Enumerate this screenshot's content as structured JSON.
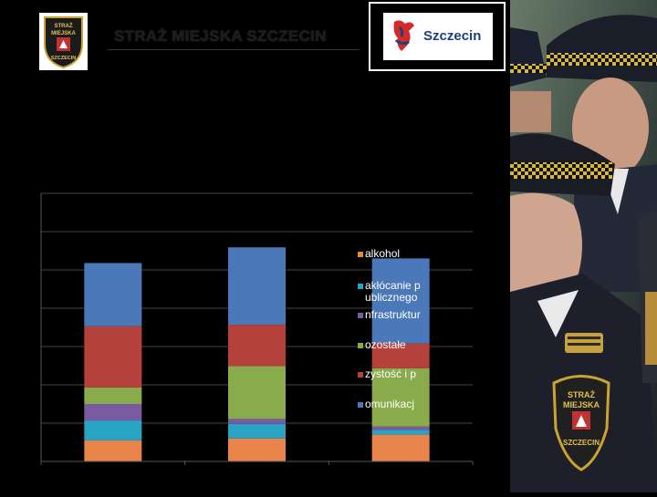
{
  "header": {
    "title": "STRAŻ MIEJSKA SZCZECIN",
    "logo_text": "Szczecin",
    "badge_lines": [
      "STRAŻ",
      "MIEJSKA",
      "SZCZECIN"
    ]
  },
  "photo": {
    "badge_lines": [
      "STRAŻ",
      "MIEJSKA",
      "SZCZECIN"
    ]
  },
  "colors": {
    "background": "#000000",
    "alkohol": "#e8834a",
    "zaklocanie": "#2aa4c4",
    "infrastruktura": "#7a5aa0",
    "pozostale": "#8aab4c",
    "czystosc": "#b5413c",
    "komunikacja": "#4a78b8"
  },
  "chart_data": {
    "type": "bar",
    "stacked": true,
    "categories": [
      "",
      "",
      ""
    ],
    "ylim": [
      0,
      7000
    ],
    "grid": true,
    "legend_position": "right, overlapping third bar",
    "series": [
      {
        "name": "alkohol",
        "legend_label": "alkohol",
        "values": [
          550,
          600,
          700
        ]
      },
      {
        "name": "zakłócanie porządku publicznego",
        "legend_label": "akłócanie p|ublicznego",
        "values": [
          520,
          380,
          120
        ]
      },
      {
        "name": "infrastruktura",
        "legend_label": "nfrastruktur",
        "values": [
          430,
          130,
          90
        ]
      },
      {
        "name": "pozostałe",
        "legend_label": "ozostałe",
        "values": [
          430,
          1380,
          1520
        ]
      },
      {
        "name": "czystość i porządek",
        "legend_label": "zystość i p",
        "values": [
          1600,
          1080,
          650
        ]
      },
      {
        "name": "komunikacja",
        "legend_label": "omunikacj",
        "values": [
          1650,
          2020,
          2220
        ]
      }
    ]
  }
}
